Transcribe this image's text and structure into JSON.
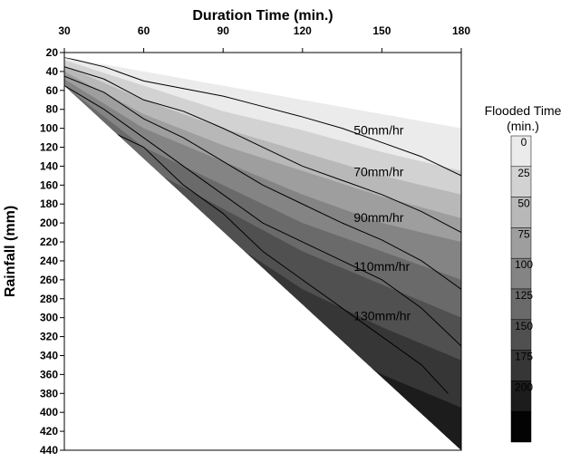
{
  "chart_data": {
    "type": "heatmap",
    "xlabel": "Duration Time (min.)",
    "ylabel": "Rainfall (mm)",
    "xlim": [
      30,
      180
    ],
    "ylim": [
      20,
      440
    ],
    "y_inverted": true,
    "x_ticks": [
      30,
      60,
      90,
      120,
      150,
      180
    ],
    "y_ticks": [
      20,
      40,
      60,
      80,
      100,
      120,
      140,
      160,
      180,
      200,
      220,
      240,
      260,
      280,
      300,
      320,
      340,
      360,
      380,
      400,
      420,
      440
    ],
    "x_axis_position": "top",
    "grid": false,
    "legend": {
      "title_line1": "Flooded Time",
      "title_line2": "(min.)",
      "placement": "right",
      "levels": [
        0,
        25,
        50,
        75,
        100,
        125,
        150,
        175,
        200
      ],
      "colors": [
        "#ebebeb",
        "#d2d2d2",
        "#b8b8b8",
        "#9e9e9e",
        "#848484",
        "#6a6a6a",
        "#505050",
        "#363636",
        "#1c1c1c",
        "#030303"
      ]
    },
    "domain_boundary": {
      "note": "data exist between the line rainfall = 2.4 * duration (lower edge) and the 20 mm/hr intensity line (upper edge)"
    },
    "intensity_lines": [
      {
        "label": "50mm/hr",
        "intensity": 50,
        "points": [
          [
            30,
            25
          ],
          [
            45,
            35
          ],
          [
            60,
            50
          ],
          [
            75,
            58
          ],
          [
            90,
            66
          ],
          [
            105,
            77
          ],
          [
            120,
            88
          ],
          [
            135,
            100
          ],
          [
            150,
            115
          ],
          [
            165,
            130
          ],
          [
            180,
            150
          ]
        ]
      },
      {
        "label": "70mm/hr",
        "intensity": 70,
        "points": [
          [
            30,
            35
          ],
          [
            45,
            48
          ],
          [
            60,
            70
          ],
          [
            75,
            82
          ],
          [
            90,
            100
          ],
          [
            105,
            120
          ],
          [
            120,
            140
          ],
          [
            135,
            155
          ],
          [
            150,
            170
          ],
          [
            165,
            188
          ],
          [
            180,
            210
          ]
        ]
      },
      {
        "label": "90mm/hr",
        "intensity": 90,
        "points": [
          [
            30,
            45
          ],
          [
            45,
            62
          ],
          [
            60,
            90
          ],
          [
            75,
            110
          ],
          [
            90,
            135
          ],
          [
            105,
            160
          ],
          [
            120,
            180
          ],
          [
            135,
            200
          ],
          [
            150,
            218
          ],
          [
            165,
            240
          ],
          [
            180,
            270
          ]
        ]
      },
      {
        "label": "110mm/hr",
        "intensity": 110,
        "points": [
          [
            30,
            55
          ],
          [
            45,
            80
          ],
          [
            60,
            110
          ],
          [
            75,
            140
          ],
          [
            90,
            170
          ],
          [
            105,
            200
          ],
          [
            120,
            220
          ],
          [
            135,
            240
          ],
          [
            150,
            260
          ],
          [
            165,
            290
          ],
          [
            180,
            330
          ]
        ]
      },
      {
        "label": "130mm/hr",
        "intensity": 130,
        "points": [
          [
            45,
            100
          ],
          [
            60,
            120
          ],
          [
            75,
            160
          ],
          [
            90,
            190
          ],
          [
            105,
            230
          ],
          [
            120,
            260
          ],
          [
            135,
            290
          ],
          [
            150,
            320
          ],
          [
            165,
            350
          ],
          [
            175,
            380
          ]
        ]
      }
    ],
    "contour_label_positions": [
      {
        "label": "50mm/hr",
        "x": 140,
        "y": 102
      },
      {
        "label": "70mm/hr",
        "x": 140,
        "y": 146
      },
      {
        "label": "90mm/hr",
        "x": 140,
        "y": 194
      },
      {
        "label": "110mm/hr",
        "x": 140,
        "y": 246
      },
      {
        "label": "130mm/hr",
        "x": 140,
        "y": 298
      }
    ],
    "flooded_time_field": {
      "note": "flooded time (min.) grows with rainfall; estimated boundaries of each shaded band as rainfall (mm) at selected durations",
      "durations": [
        30,
        60,
        90,
        120,
        150,
        180
      ],
      "band_edges": [
        {
          "level": 25,
          "rainfall": [
            28,
            55,
            82,
            102,
            125,
            145
          ]
        },
        {
          "level": 50,
          "rainfall": [
            34,
            70,
            100,
            125,
            150,
            170
          ]
        },
        {
          "level": 75,
          "rainfall": [
            40,
            85,
            118,
            145,
            172,
            195
          ]
        },
        {
          "level": 100,
          "rainfall": [
            48,
            100,
            135,
            170,
            200,
            220
          ]
        },
        {
          "level": 125,
          "rainfall": [
            55,
            120,
            160,
            200,
            230,
            260
          ]
        },
        {
          "level": 150,
          "rainfall": [
            62,
            140,
            185,
            230,
            265,
            300
          ]
        },
        {
          "level": 175,
          "rainfall": [
            70,
            160,
            215,
            270,
            310,
            345
          ]
        },
        {
          "level": 200,
          "rainfall": [
            78,
            180,
            245,
            310,
            360,
            395
          ]
        }
      ]
    }
  }
}
